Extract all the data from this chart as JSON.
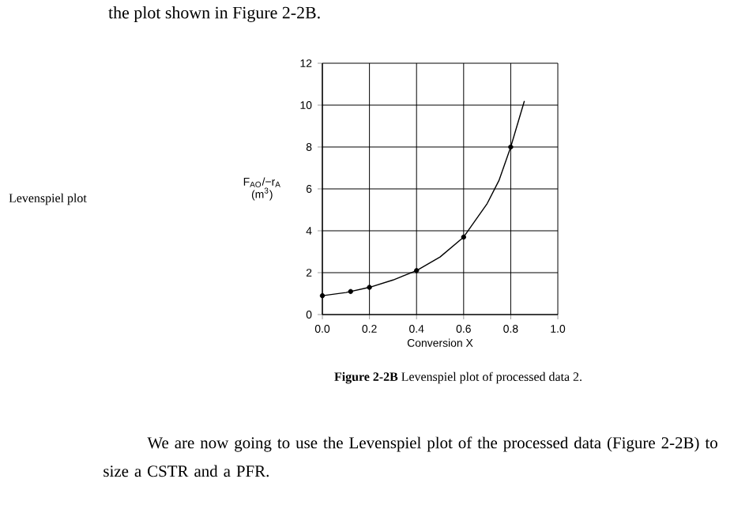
{
  "chart_data": {
    "type": "line",
    "xlabel": "Conversion X",
    "ylabel": "F$_{AO}$/−r$_{A}$ (m$^{3}$)",
    "xlim": [
      0,
      1
    ],
    "ylim": [
      0,
      12
    ],
    "xticks": [
      {
        "value": 0,
        "label": "0.0"
      },
      {
        "value": 0.2,
        "label": "0.2"
      },
      {
        "value": 0.4,
        "label": "0.4"
      },
      {
        "value": 0.6,
        "label": "0.6"
      },
      {
        "value": 0.8,
        "label": "0.8"
      },
      {
        "value": 1,
        "label": "1.0"
      }
    ],
    "yticks": [
      0,
      2,
      4,
      6,
      8,
      10,
      12
    ],
    "grid": true,
    "line_style": "solid",
    "series": [
      {
        "color": "#000000",
        "marker": "none",
        "x": [
          0,
          0.1,
          0.2,
          0.3,
          0.4,
          0.5,
          0.6,
          0.7,
          0.75,
          0.8,
          0.858
        ],
        "values": [
          0.9,
          1.05,
          1.3,
          1.65,
          2.1,
          2.75,
          3.7,
          5.3,
          6.4,
          8.0,
          10.2
        ]
      },
      {
        "type": "scatter",
        "color": "#000000",
        "marker": "circle",
        "x": [
          0,
          0.12,
          0.2,
          0.4,
          0.6,
          0.8
        ],
        "values": [
          0.9,
          1.1,
          1.3,
          2.1,
          3.7,
          8.0
        ]
      }
    ],
    "annotations": [
      "the plot shown in Figure 2-2B.",
      "Levenspiel plot",
      "**Figure 2-2B** Levenspiel plot of processed data 2.",
      "We are now going to use the Levenspiel plot of the processed data (Figure 2-2B) to size a CSTR and a PFR."
    ]
  }
}
